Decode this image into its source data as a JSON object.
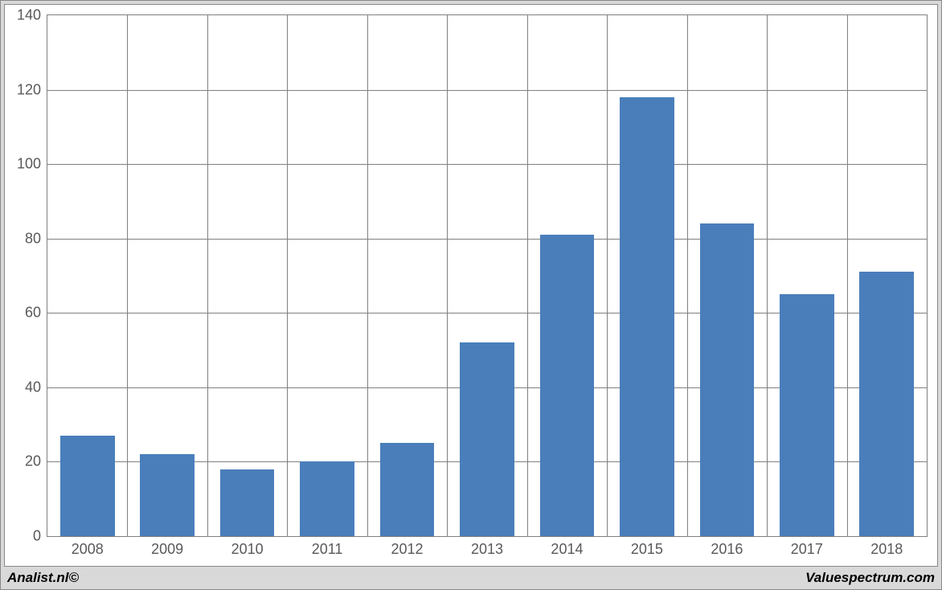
{
  "chart": {
    "type": "bar",
    "categories": [
      "2008",
      "2009",
      "2010",
      "2011",
      "2012",
      "2013",
      "2014",
      "2015",
      "2016",
      "2017",
      "2018"
    ],
    "values": [
      27,
      22,
      18,
      20,
      25,
      52,
      81,
      118,
      84,
      65,
      71
    ],
    "bar_color": "#4a7ebb",
    "ylim": [
      0,
      140
    ],
    "ytick_step": 20,
    "yticks": [
      "0",
      "20",
      "40",
      "60",
      "80",
      "100",
      "120",
      "140"
    ],
    "grid_color": "#808080",
    "background_color": "#ffffff",
    "frame_background": "#d9d9d9",
    "axis_font_size": 18,
    "axis_font_color": "#595959",
    "bar_width_ratio": 0.68
  },
  "footer": {
    "left": "Analist.nl©",
    "right": "Valuespectrum.com"
  }
}
